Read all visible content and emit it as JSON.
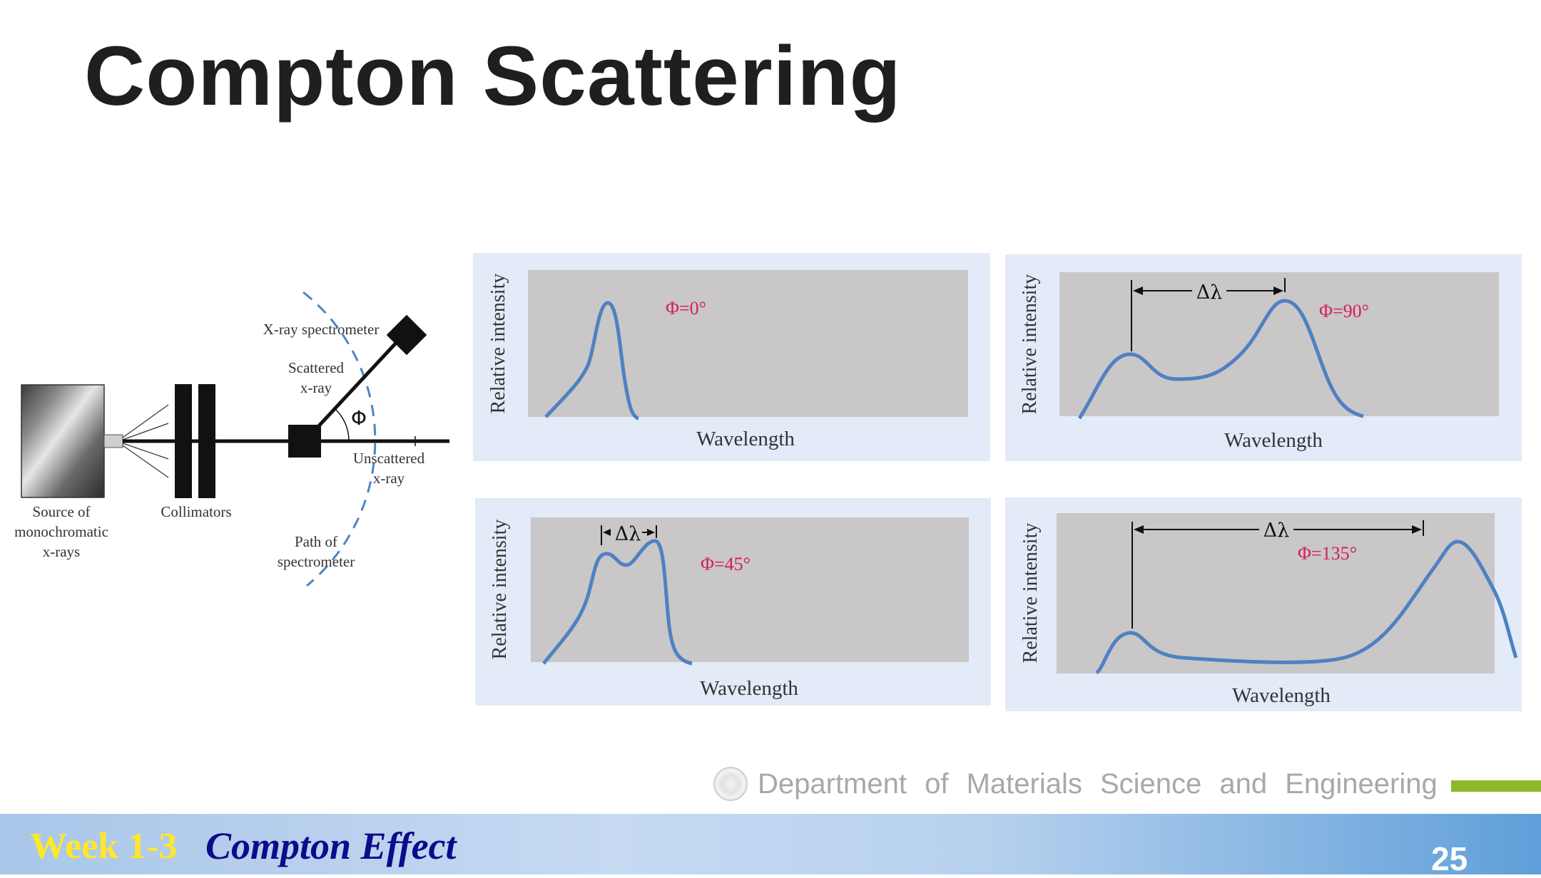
{
  "slide": {
    "title": "Compton Scattering",
    "department": "Department of Materials Science and Engineering",
    "week": "Week 1-3",
    "topic": "Compton Effect",
    "page_number": "25"
  },
  "apparatus": {
    "source_label": [
      "Source of",
      "monochromatic",
      "x-rays"
    ],
    "collimators_label": "Collimators",
    "spectrometer_label": "X-ray spectrometer",
    "scattered_label": [
      "Scattered",
      "x-ray"
    ],
    "angle_symbol": "Φ",
    "unscattered_label": [
      "Unscattered",
      "x-ray"
    ],
    "path_label": [
      "Path of",
      "spectrometer"
    ],
    "colors": {
      "dashed_path": "#4a86c5",
      "beam": "#111111"
    }
  },
  "chart_data": [
    {
      "type": "line",
      "angle_label": "Φ=0°",
      "xlabel": "Wavelength",
      "ylabel": "Relative intensity",
      "shift_label": ""
    },
    {
      "type": "line",
      "angle_label": "Φ=90°",
      "xlabel": "Wavelength",
      "ylabel": "Relative intensity",
      "shift_label": "Δλ"
    },
    {
      "type": "line",
      "angle_label": "Φ=45°",
      "xlabel": "Wavelength",
      "ylabel": "Relative intensity",
      "shift_label": "Δλ"
    },
    {
      "type": "line",
      "angle_label": "Φ=135°",
      "xlabel": "Wavelength",
      "ylabel": "Relative intensity",
      "shift_label": "Δλ"
    }
  ],
  "colors": {
    "curve": "#4f81c2",
    "angle_text": "#d2205a",
    "panel_outer": "#e2ebf7",
    "plot_area": "#c9c7c7",
    "accent_green": "#8db829"
  }
}
